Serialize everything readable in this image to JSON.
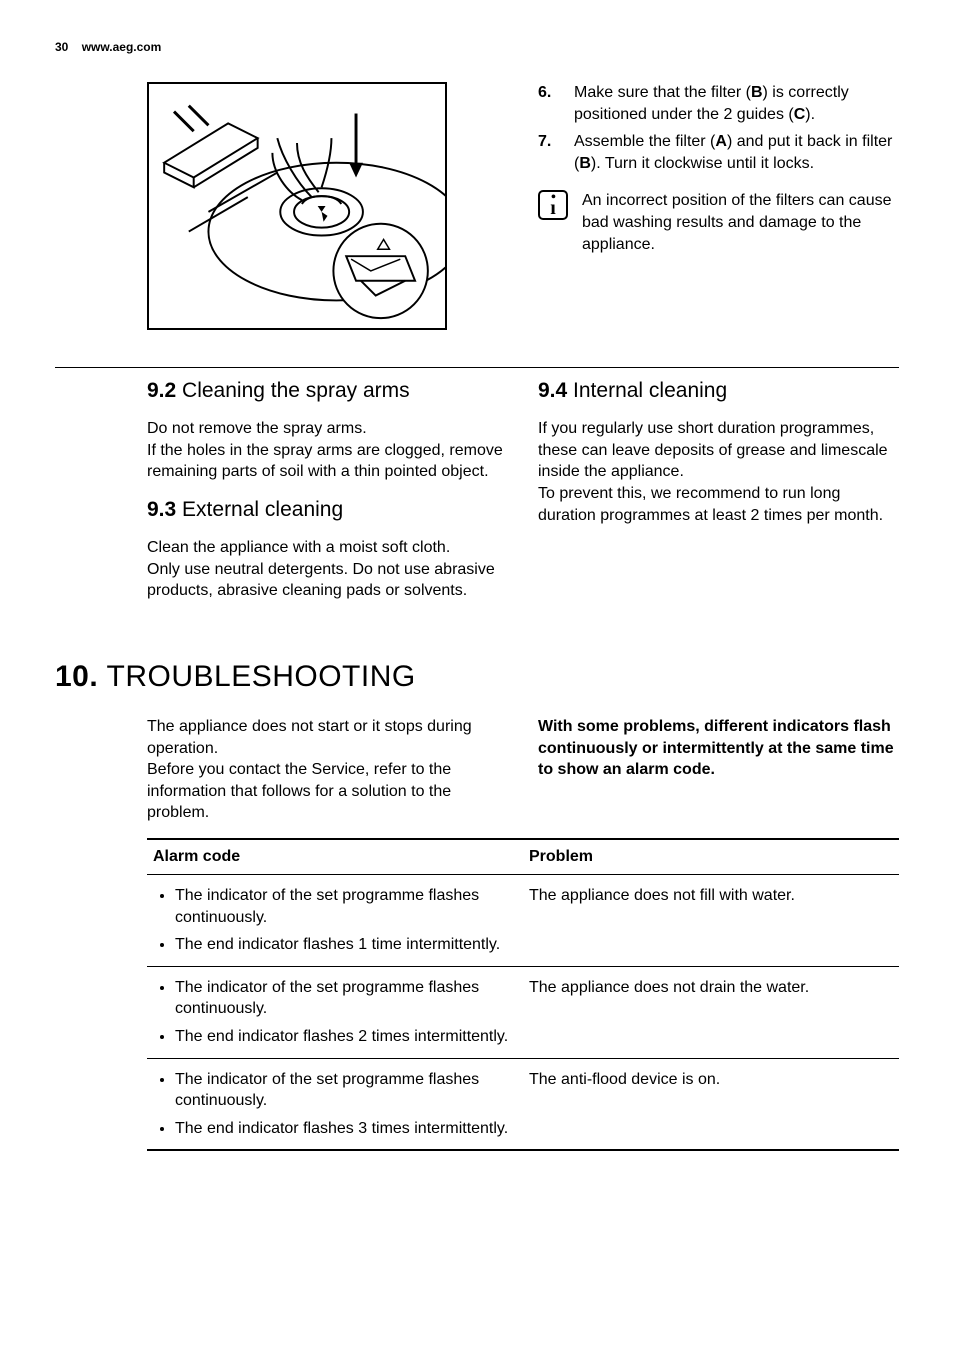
{
  "header": {
    "page_num": "30",
    "url": "www.aeg.com"
  },
  "top": {
    "steps": [
      "Make sure that the filter (<b>B</b>) is correctly positioned under the 2 guides (<b>C</b>).",
      "Assemble the filter (<b>A</b>) and put it back in filter (<b>B</b>). Turn it clockwise until it locks."
    ],
    "info_note": "An incorrect position of the filters can cause bad washing results and damage to the appliance."
  },
  "sec92": {
    "num": "9.2",
    "title": "Cleaning the spray arms",
    "body": "Do not remove the spray arms.\nIf the holes in the spray arms are clogged, remove remaining parts of soil with a thin pointed object."
  },
  "sec93": {
    "num": "9.3",
    "title": "External cleaning",
    "body": "Clean the appliance with a moist soft cloth.\nOnly use neutral detergents. Do not use abrasive products, abrasive cleaning pads or solvents."
  },
  "sec94": {
    "num": "9.4",
    "title": "Internal cleaning",
    "body": "If you regularly use short duration programmes, these can leave deposits of grease and limescale inside the appliance.\nTo prevent this, we recommend to run long duration programmes at least 2 times per month."
  },
  "chapter": {
    "num": "10.",
    "title": "TROUBLESHOOTING",
    "intro_left": "The appliance does not start or it stops during operation.\nBefore you contact the Service, refer to the information that follows for a solution to the problem.",
    "intro_right": "With some problems, different indicators flash continuously or intermittently at the same time to show an alarm code.",
    "table": {
      "headers": [
        "Alarm code",
        "Problem"
      ],
      "rows": [
        {
          "alarm": [
            "The indicator of the set programme flashes continuously.",
            "The end indicator flashes 1 time intermittently."
          ],
          "problem": "The appliance does not fill with water."
        },
        {
          "alarm": [
            "The indicator of the set programme flashes continuously.",
            "The end indicator flashes 2 times intermittently."
          ],
          "problem": "The appliance does not drain the water."
        },
        {
          "alarm": [
            "The indicator of the set programme flashes continuously.",
            "The end indicator flashes 3 times intermittently."
          ],
          "problem": "The anti-flood device is on."
        }
      ]
    }
  }
}
